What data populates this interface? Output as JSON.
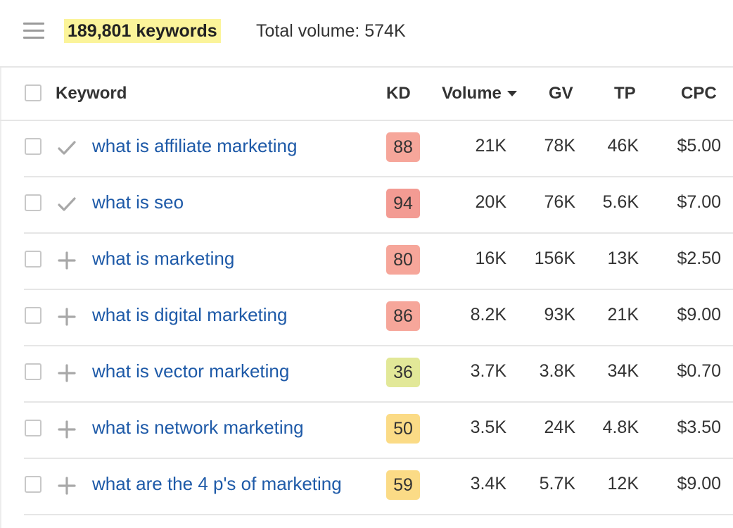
{
  "summary": {
    "keyword_count": "189,801 keywords",
    "total_volume": "Total volume: 574K"
  },
  "columns": {
    "keyword": "Keyword",
    "kd": "KD",
    "volume": "Volume",
    "gv": "GV",
    "tp": "TP",
    "cpc": "CPC"
  },
  "sort": {
    "column": "volume",
    "direction": "descending"
  },
  "kd_colors": {
    "red": "#f6a69a",
    "hard_red": "#f39b93",
    "yellow_green": "#e2e898",
    "yellow": "#fbdb86"
  },
  "link_color": "#1e5aa8",
  "rows": [
    {
      "keyword": "what is affiliate marketing",
      "status": "check-icon",
      "kd": "88",
      "kd_color": "#f6a69a",
      "volume": "21K",
      "gv": "78K",
      "tp": "46K",
      "cpc": "$5.00"
    },
    {
      "keyword": "what is seo",
      "status": "check-icon",
      "kd": "94",
      "kd_color": "#f39b93",
      "volume": "20K",
      "gv": "76K",
      "tp": "5.6K",
      "cpc": "$7.00"
    },
    {
      "keyword": "what is marketing",
      "status": "plus-icon",
      "kd": "80",
      "kd_color": "#f6a69a",
      "volume": "16K",
      "gv": "156K",
      "tp": "13K",
      "cpc": "$2.50"
    },
    {
      "keyword": "what is digital marketing",
      "status": "plus-icon",
      "kd": "86",
      "kd_color": "#f6a69a",
      "volume": "8.2K",
      "gv": "93K",
      "tp": "21K",
      "cpc": "$9.00"
    },
    {
      "keyword": "what is vector marketing",
      "status": "plus-icon",
      "kd": "36",
      "kd_color": "#e2e898",
      "volume": "3.7K",
      "gv": "3.8K",
      "tp": "34K",
      "cpc": "$0.70"
    },
    {
      "keyword": "what is network marketing",
      "status": "plus-icon",
      "kd": "50",
      "kd_color": "#fbdb86",
      "volume": "3.5K",
      "gv": "24K",
      "tp": "4.8K",
      "cpc": "$3.50"
    },
    {
      "keyword": "what are the 4 p's of marketing",
      "status": "plus-icon",
      "kd": "59",
      "kd_color": "#fbdb86",
      "volume": "3.4K",
      "gv": "5.7K",
      "tp": "12K",
      "cpc": "$9.00"
    }
  ]
}
